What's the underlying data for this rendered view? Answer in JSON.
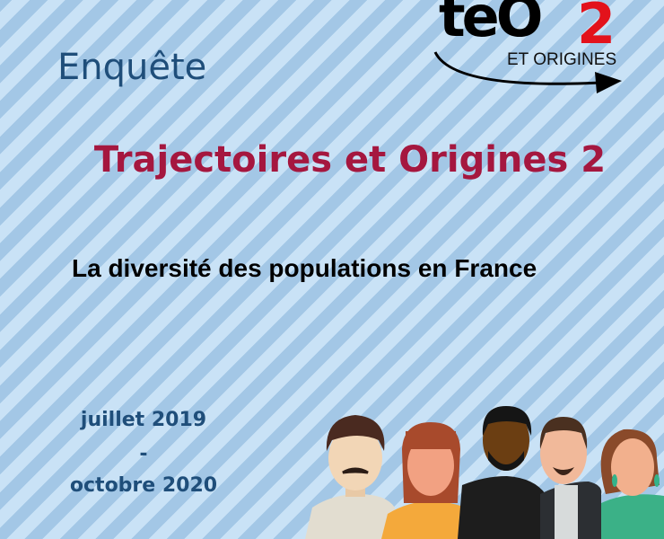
{
  "header": {
    "kicker": "Enquête",
    "title": "Trajectoires et Origines 2",
    "subtitle": "La diversité des populations en France"
  },
  "dates": {
    "start": "juillet 2019",
    "separator": "-",
    "end": "octobre 2020"
  },
  "logo": {
    "wordmark": "teO",
    "superscript": "2",
    "tagline": "ET ORIGINES",
    "accent": "#e3121b"
  },
  "colors": {
    "kicker": "#1f4e7a",
    "title": "#a5173f",
    "stripe_light": "#c9e2f6",
    "stripe_dark": "#a3c7e6"
  }
}
